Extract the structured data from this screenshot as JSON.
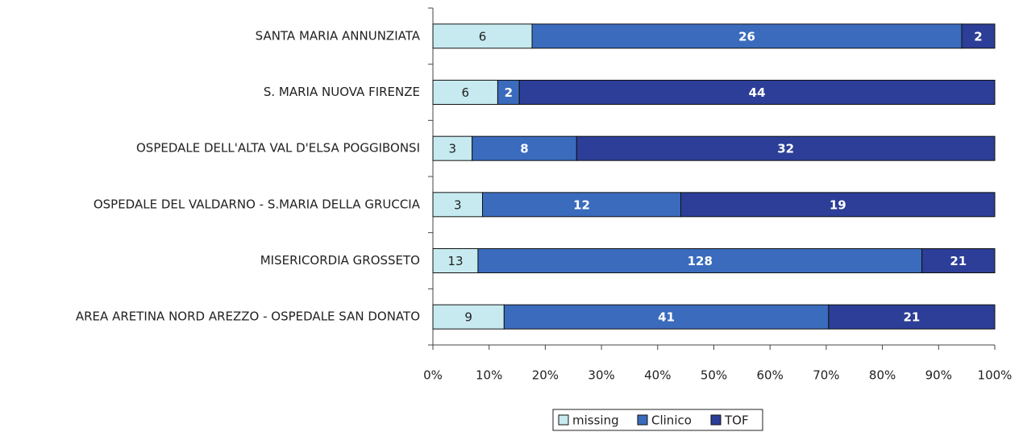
{
  "chart_data": {
    "type": "bar",
    "orientation": "horizontal",
    "stack": "percent",
    "categories": [
      "SANTA MARIA ANNUNZIATA",
      "S. MARIA NUOVA FIRENZE",
      "OSPEDALE DELL'ALTA VAL D'ELSA POGGIBONSI",
      "OSPEDALE DEL VALDARNO - S.MARIA DELLA GRUCCIA",
      "MISERICORDIA GROSSETO",
      "AREA ARETINA NORD AREZZO - OSPEDALE SAN DONATO"
    ],
    "series": [
      {
        "name": "missing",
        "color": "#c6eaf0",
        "values": [
          6,
          6,
          3,
          3,
          13,
          9
        ]
      },
      {
        "name": "Clinico",
        "color": "#3a6bbd",
        "values": [
          26,
          2,
          8,
          12,
          128,
          41
        ]
      },
      {
        "name": "TOF",
        "color": "#2c3e97",
        "values": [
          2,
          44,
          32,
          19,
          21,
          21
        ]
      }
    ],
    "xlim": [
      0,
      100
    ],
    "xticks": [
      {
        "value": 0,
        "label": "0%"
      },
      {
        "value": 10,
        "label": "10%"
      },
      {
        "value": 20,
        "label": "20%"
      },
      {
        "value": 30,
        "label": "30%"
      },
      {
        "value": 40,
        "label": "40%"
      },
      {
        "value": 50,
        "label": "50%"
      },
      {
        "value": 60,
        "label": "60%"
      },
      {
        "value": 70,
        "label": "70%"
      },
      {
        "value": 80,
        "label": "80%"
      },
      {
        "value": 90,
        "label": "90%"
      },
      {
        "value": 100,
        "label": "100%"
      }
    ],
    "legend": "bottom"
  }
}
